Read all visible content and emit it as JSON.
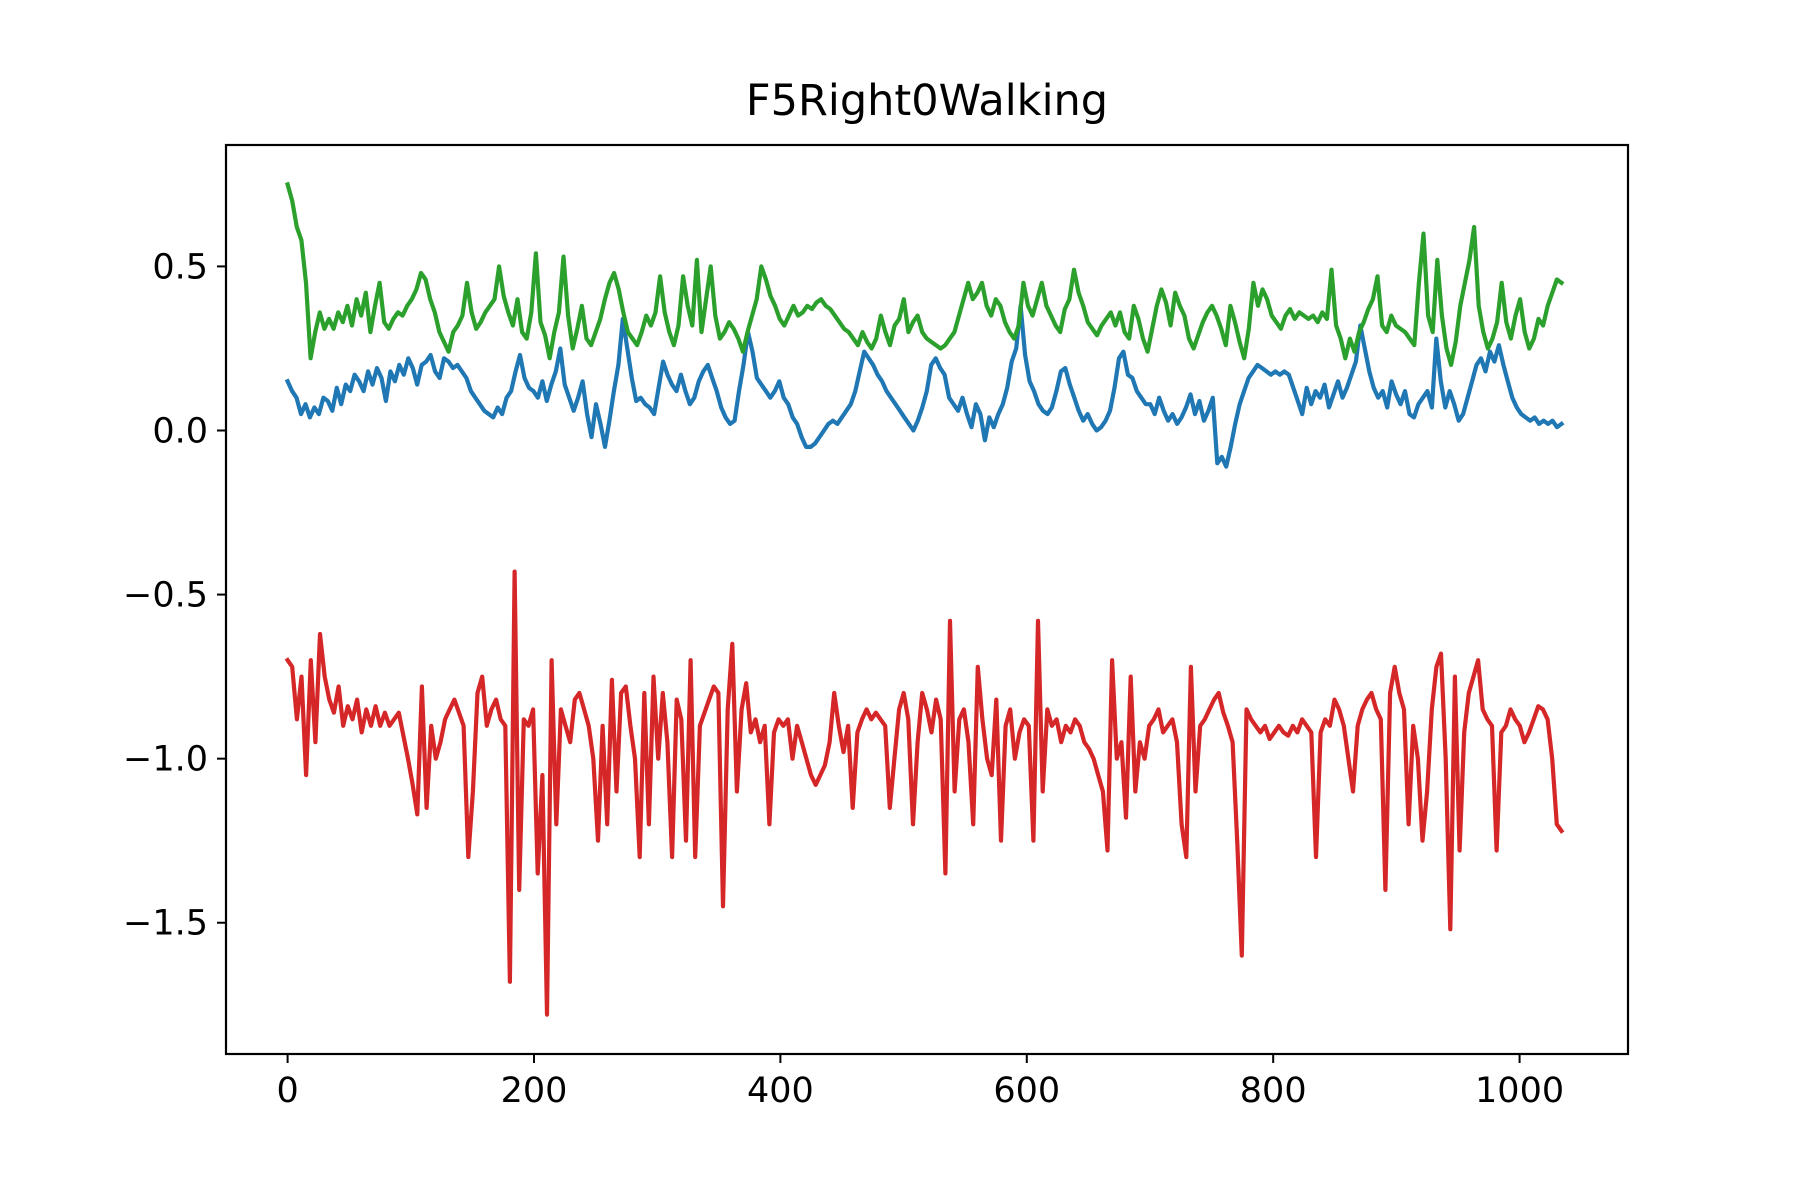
{
  "chart_data": {
    "type": "line",
    "title": "F5Right0Walking",
    "xlabel": "",
    "ylabel": "",
    "xlim": [
      -50,
      1088
    ],
    "ylim": [
      -1.9,
      0.87
    ],
    "grid": false,
    "legend": "none",
    "x_ticks": [
      {
        "value": 0,
        "label": "0"
      },
      {
        "value": 200,
        "label": "200"
      },
      {
        "value": 400,
        "label": "400"
      },
      {
        "value": 600,
        "label": "600"
      },
      {
        "value": 800,
        "label": "800"
      },
      {
        "value": 1000,
        "label": "1000"
      }
    ],
    "y_ticks": [
      {
        "value": 0.5,
        "label": "0.5"
      },
      {
        "value": 0.0,
        "label": "0.0"
      },
      {
        "value": -0.5,
        "label": "−0.5"
      },
      {
        "value": -1.0,
        "label": "−1.0"
      },
      {
        "value": -1.5,
        "label": "−1.5"
      }
    ],
    "series": [
      {
        "color": "#1f77b4",
        "values": [
          0.15,
          0.12,
          0.1,
          0.05,
          0.08,
          0.04,
          0.07,
          0.05,
          0.1,
          0.09,
          0.06,
          0.13,
          0.08,
          0.14,
          0.12,
          0.17,
          0.15,
          0.12,
          0.18,
          0.14,
          0.19,
          0.16,
          0.09,
          0.18,
          0.15,
          0.2,
          0.17,
          0.22,
          0.19,
          0.14,
          0.2,
          0.21,
          0.23,
          0.18,
          0.16,
          0.22,
          0.21,
          0.19,
          0.2,
          0.18,
          0.16,
          0.12,
          0.1,
          0.08,
          0.06,
          0.05,
          0.04,
          0.07,
          0.05,
          0.1,
          0.12,
          0.18,
          0.23,
          0.16,
          0.13,
          0.12,
          0.1,
          0.15,
          0.09,
          0.14,
          0.18,
          0.25,
          0.14,
          0.1,
          0.06,
          0.1,
          0.15,
          0.05,
          -0.02,
          0.08,
          0.02,
          -0.05,
          0.03,
          0.12,
          0.2,
          0.34,
          0.25,
          0.16,
          0.09,
          0.1,
          0.08,
          0.07,
          0.05,
          0.13,
          0.21,
          0.17,
          0.14,
          0.12,
          0.17,
          0.12,
          0.08,
          0.1,
          0.15,
          0.18,
          0.2,
          0.16,
          0.12,
          0.07,
          0.04,
          0.02,
          0.03,
          0.12,
          0.2,
          0.3,
          0.24,
          0.16,
          0.14,
          0.12,
          0.1,
          0.12,
          0.15,
          0.1,
          0.08,
          0.04,
          0.02,
          -0.02,
          -0.05,
          -0.05,
          -0.04,
          -0.02,
          0.0,
          0.02,
          0.03,
          0.02,
          0.04,
          0.06,
          0.08,
          0.12,
          0.18,
          0.24,
          0.22,
          0.2,
          0.17,
          0.15,
          0.12,
          0.1,
          0.08,
          0.06,
          0.04,
          0.02,
          0.0,
          0.03,
          0.07,
          0.12,
          0.2,
          0.22,
          0.19,
          0.17,
          0.1,
          0.08,
          0.06,
          0.1,
          0.05,
          0.01,
          0.08,
          0.05,
          -0.03,
          0.04,
          0.01,
          0.05,
          0.08,
          0.13,
          0.21,
          0.25,
          0.38,
          0.23,
          0.15,
          0.12,
          0.08,
          0.06,
          0.05,
          0.07,
          0.12,
          0.18,
          0.19,
          0.14,
          0.1,
          0.06,
          0.03,
          0.05,
          0.02,
          0.0,
          0.01,
          0.03,
          0.06,
          0.13,
          0.22,
          0.24,
          0.17,
          0.16,
          0.12,
          0.1,
          0.08,
          0.08,
          0.05,
          0.1,
          0.06,
          0.03,
          0.05,
          0.02,
          0.04,
          0.07,
          0.11,
          0.05,
          0.09,
          0.03,
          0.06,
          0.1,
          -0.1,
          -0.08,
          -0.11,
          -0.05,
          0.02,
          0.08,
          0.12,
          0.16,
          0.18,
          0.2,
          0.19,
          0.18,
          0.17,
          0.18,
          0.17,
          0.18,
          0.17,
          0.13,
          0.09,
          0.05,
          0.13,
          0.08,
          0.12,
          0.1,
          0.14,
          0.07,
          0.11,
          0.15,
          0.1,
          0.13,
          0.17,
          0.21,
          0.32,
          0.25,
          0.18,
          0.13,
          0.1,
          0.12,
          0.07,
          0.15,
          0.11,
          0.08,
          0.12,
          0.05,
          0.04,
          0.08,
          0.1,
          0.12,
          0.07,
          0.28,
          0.15,
          0.07,
          0.12,
          0.08,
          0.03,
          0.05,
          0.1,
          0.15,
          0.2,
          0.22,
          0.18,
          0.24,
          0.21,
          0.26,
          0.2,
          0.15,
          0.1,
          0.07,
          0.05,
          0.04,
          0.03,
          0.04,
          0.02,
          0.03,
          0.02,
          0.03,
          0.01,
          0.02
        ]
      },
      {
        "color": "#2ca02c",
        "values": [
          0.75,
          0.7,
          0.62,
          0.58,
          0.45,
          0.22,
          0.3,
          0.36,
          0.31,
          0.34,
          0.31,
          0.36,
          0.33,
          0.38,
          0.32,
          0.4,
          0.35,
          0.42,
          0.3,
          0.38,
          0.45,
          0.33,
          0.31,
          0.34,
          0.36,
          0.35,
          0.38,
          0.4,
          0.43,
          0.48,
          0.46,
          0.4,
          0.36,
          0.3,
          0.27,
          0.24,
          0.3,
          0.32,
          0.35,
          0.45,
          0.36,
          0.31,
          0.33,
          0.36,
          0.38,
          0.4,
          0.5,
          0.41,
          0.36,
          0.32,
          0.4,
          0.3,
          0.28,
          0.36,
          0.54,
          0.33,
          0.29,
          0.22,
          0.3,
          0.36,
          0.53,
          0.35,
          0.25,
          0.31,
          0.38,
          0.28,
          0.26,
          0.3,
          0.34,
          0.4,
          0.45,
          0.48,
          0.43,
          0.36,
          0.3,
          0.28,
          0.26,
          0.3,
          0.35,
          0.32,
          0.36,
          0.47,
          0.36,
          0.3,
          0.26,
          0.32,
          0.47,
          0.38,
          0.32,
          0.52,
          0.3,
          0.4,
          0.5,
          0.35,
          0.28,
          0.3,
          0.33,
          0.31,
          0.28,
          0.24,
          0.3,
          0.35,
          0.4,
          0.5,
          0.46,
          0.41,
          0.38,
          0.34,
          0.32,
          0.35,
          0.38,
          0.35,
          0.36,
          0.38,
          0.37,
          0.39,
          0.4,
          0.38,
          0.37,
          0.35,
          0.33,
          0.31,
          0.3,
          0.28,
          0.26,
          0.3,
          0.27,
          0.25,
          0.28,
          0.35,
          0.3,
          0.26,
          0.32,
          0.34,
          0.4,
          0.3,
          0.33,
          0.35,
          0.3,
          0.28,
          0.27,
          0.26,
          0.25,
          0.26,
          0.28,
          0.3,
          0.35,
          0.4,
          0.45,
          0.4,
          0.42,
          0.45,
          0.38,
          0.35,
          0.4,
          0.38,
          0.33,
          0.3,
          0.28,
          0.32,
          0.45,
          0.38,
          0.35,
          0.4,
          0.45,
          0.38,
          0.35,
          0.32,
          0.3,
          0.37,
          0.4,
          0.49,
          0.42,
          0.38,
          0.33,
          0.31,
          0.29,
          0.32,
          0.34,
          0.36,
          0.32,
          0.36,
          0.3,
          0.28,
          0.38,
          0.34,
          0.28,
          0.24,
          0.31,
          0.38,
          0.43,
          0.39,
          0.32,
          0.42,
          0.38,
          0.35,
          0.28,
          0.25,
          0.29,
          0.33,
          0.36,
          0.38,
          0.35,
          0.31,
          0.26,
          0.38,
          0.33,
          0.27,
          0.22,
          0.31,
          0.45,
          0.38,
          0.43,
          0.4,
          0.35,
          0.33,
          0.31,
          0.35,
          0.37,
          0.34,
          0.36,
          0.35,
          0.34,
          0.35,
          0.33,
          0.36,
          0.34,
          0.49,
          0.32,
          0.28,
          0.22,
          0.28,
          0.24,
          0.3,
          0.33,
          0.37,
          0.4,
          0.47,
          0.32,
          0.3,
          0.35,
          0.32,
          0.31,
          0.3,
          0.28,
          0.26,
          0.45,
          0.6,
          0.35,
          0.3,
          0.52,
          0.35,
          0.25,
          0.2,
          0.27,
          0.38,
          0.45,
          0.52,
          0.62,
          0.38,
          0.3,
          0.25,
          0.28,
          0.33,
          0.45,
          0.33,
          0.28,
          0.35,
          0.4,
          0.3,
          0.25,
          0.28,
          0.34,
          0.32,
          0.38,
          0.42,
          0.46,
          0.45
        ]
      },
      {
        "color": "#d62728",
        "values": [
          -0.7,
          -0.72,
          -0.88,
          -0.75,
          -1.05,
          -0.7,
          -0.95,
          -0.62,
          -0.75,
          -0.82,
          -0.86,
          -0.78,
          -0.9,
          -0.84,
          -0.88,
          -0.82,
          -0.92,
          -0.85,
          -0.9,
          -0.84,
          -0.9,
          -0.86,
          -0.9,
          -0.88,
          -0.86,
          -0.93,
          -1.0,
          -1.08,
          -1.17,
          -0.78,
          -1.15,
          -0.9,
          -1.0,
          -0.95,
          -0.88,
          -0.85,
          -0.82,
          -0.86,
          -0.9,
          -1.3,
          -1.1,
          -0.8,
          -0.75,
          -0.9,
          -0.85,
          -0.82,
          -0.88,
          -0.9,
          -1.68,
          -0.43,
          -1.4,
          -0.88,
          -0.9,
          -0.85,
          -1.35,
          -1.05,
          -1.78,
          -0.7,
          -1.2,
          -0.85,
          -0.9,
          -0.95,
          -0.82,
          -0.8,
          -0.85,
          -0.9,
          -1.0,
          -1.25,
          -0.9,
          -1.2,
          -0.76,
          -1.1,
          -0.8,
          -0.78,
          -0.9,
          -1.0,
          -1.3,
          -0.8,
          -1.2,
          -0.75,
          -1.0,
          -0.8,
          -0.95,
          -1.3,
          -0.82,
          -0.88,
          -1.25,
          -0.7,
          -1.3,
          -0.9,
          -0.86,
          -0.82,
          -0.78,
          -0.8,
          -1.45,
          -0.85,
          -0.65,
          -1.1,
          -0.85,
          -0.77,
          -0.92,
          -0.88,
          -0.95,
          -0.9,
          -1.2,
          -0.92,
          -0.88,
          -0.9,
          -0.88,
          -1.0,
          -0.9,
          -0.95,
          -1.0,
          -1.05,
          -1.08,
          -1.05,
          -1.02,
          -0.95,
          -0.8,
          -0.9,
          -0.98,
          -0.9,
          -1.15,
          -0.92,
          -0.88,
          -0.85,
          -0.88,
          -0.86,
          -0.88,
          -0.9,
          -1.15,
          -1.0,
          -0.85,
          -0.8,
          -0.88,
          -1.2,
          -0.95,
          -0.8,
          -0.85,
          -0.92,
          -0.82,
          -0.88,
          -1.35,
          -0.58,
          -1.1,
          -0.88,
          -0.85,
          -0.95,
          -1.2,
          -0.72,
          -0.88,
          -1.0,
          -1.05,
          -0.82,
          -1.25,
          -0.9,
          -0.85,
          -1.0,
          -0.92,
          -0.88,
          -0.9,
          -1.25,
          -0.58,
          -1.1,
          -0.85,
          -0.9,
          -0.88,
          -0.95,
          -0.9,
          -0.92,
          -0.88,
          -0.9,
          -0.95,
          -0.97,
          -1.0,
          -1.05,
          -1.1,
          -1.28,
          -0.7,
          -1.0,
          -0.95,
          -1.18,
          -0.75,
          -1.1,
          -0.95,
          -1.0,
          -0.9,
          -0.88,
          -0.85,
          -0.92,
          -0.9,
          -0.88,
          -0.95,
          -1.2,
          -1.3,
          -0.72,
          -1.1,
          -0.9,
          -0.88,
          -0.85,
          -0.82,
          -0.8,
          -0.86,
          -0.9,
          -0.95,
          -1.25,
          -1.6,
          -0.85,
          -0.88,
          -0.9,
          -0.92,
          -0.9,
          -0.94,
          -0.92,
          -0.9,
          -0.92,
          -0.93,
          -0.9,
          -0.92,
          -0.88,
          -0.9,
          -0.92,
          -1.3,
          -0.92,
          -0.88,
          -0.9,
          -0.82,
          -0.85,
          -0.9,
          -1.0,
          -1.1,
          -0.9,
          -0.85,
          -0.82,
          -0.8,
          -0.85,
          -0.88,
          -1.4,
          -0.8,
          -0.72,
          -0.8,
          -0.85,
          -1.2,
          -0.9,
          -1.0,
          -1.25,
          -1.1,
          -0.85,
          -0.72,
          -0.68,
          -1.0,
          -1.52,
          -0.75,
          -1.28,
          -0.92,
          -0.8,
          -0.75,
          -0.7,
          -0.85,
          -0.88,
          -0.9,
          -1.28,
          -0.92,
          -0.9,
          -0.85,
          -0.88,
          -0.9,
          -0.95,
          -0.92,
          -0.88,
          -0.84,
          -0.85,
          -0.88,
          -1.0,
          -1.2,
          -1.22
        ]
      }
    ]
  }
}
